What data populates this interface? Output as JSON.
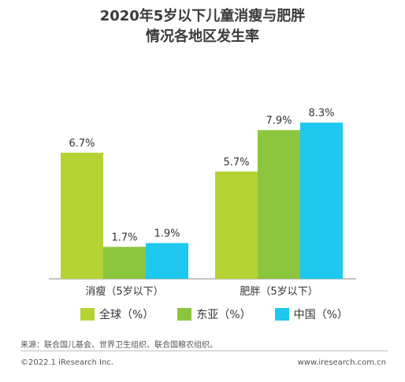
{
  "chart_data": {
    "type": "bar",
    "title_lines": [
      "2020年5岁以下儿童消瘦与肥胖",
      "情况各地区发生率"
    ],
    "categories": [
      "消瘦（5岁以下）",
      "肥胖（5岁以下）"
    ],
    "series": [
      {
        "name": "全球（%）",
        "values": [
          6.7,
          5.7
        ],
        "labels": [
          "6.7%",
          "5.7%"
        ],
        "color": "#b5d334"
      },
      {
        "name": "东亚（%）",
        "values": [
          1.7,
          7.9
        ],
        "labels": [
          "1.7%",
          "7.9%"
        ],
        "color": "#8cc63f"
      },
      {
        "name": "中国（%）",
        "values": [
          1.9,
          8.3
        ],
        "labels": [
          "1.9%",
          "8.3%"
        ],
        "color": "#1ec8ee"
      }
    ],
    "ylim": [
      0,
      10
    ],
    "grid": false,
    "legend_position": "bottom"
  },
  "source": "来源：联合国儿基会、世界卫生组织、联合国粮农组织。",
  "footer": {
    "copyright": "©2022.1 iResearch Inc.",
    "url": "www.iresearch.com.cn"
  }
}
